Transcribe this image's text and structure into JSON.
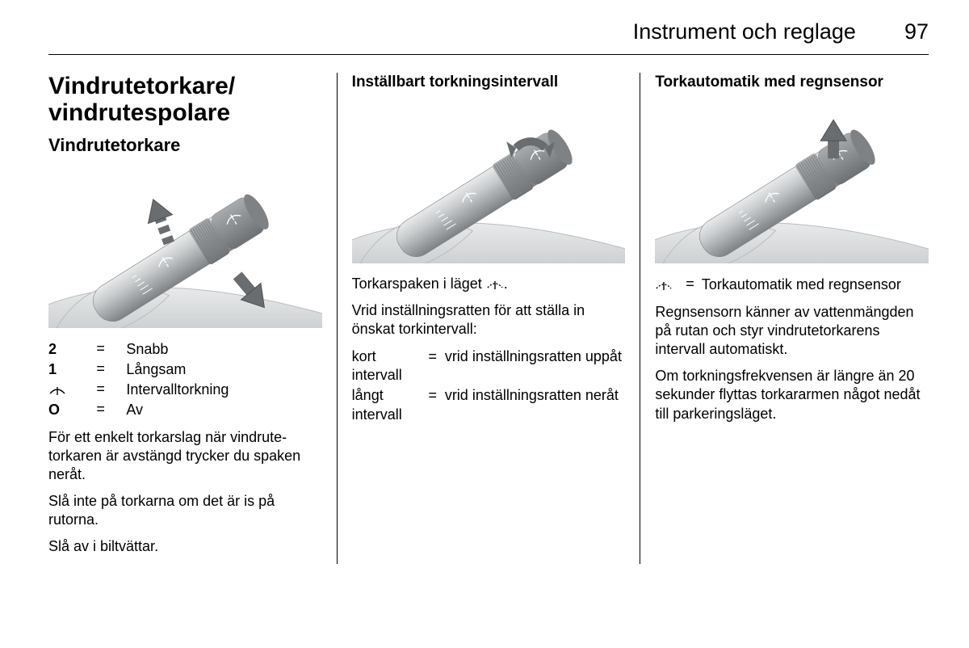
{
  "header": {
    "chapter": "Instrument och reglage",
    "page": "97"
  },
  "col1": {
    "h1": "Vindrutetorkare/\nvindrutespolare",
    "h2": "Vindrutetorkare",
    "legend": [
      {
        "sym": "2",
        "symType": "text",
        "val": "Snabb"
      },
      {
        "sym": "1",
        "symType": "text",
        "val": "Långsam"
      },
      {
        "sym": "wiper-interval",
        "symType": "icon",
        "val": "Intervalltorkning"
      },
      {
        "sym": "O",
        "symType": "text",
        "val": "Av"
      }
    ],
    "p1": "För ett enkelt torkarslag när vindrute­torkaren är avstängd trycker du spaken neråt.",
    "p2": "Slå inte på torkarna om det är is på rutorna.",
    "p3": "Slå av i biltvättar."
  },
  "col2": {
    "h3": "Inställbart torkningsintervall",
    "p1_pre": "Torkarspaken i läget ",
    "p1_post": ".",
    "p2": "Vrid inställningsratten för att ställa in önskat torkintervall:",
    "rows": [
      {
        "left": "kort intervall",
        "right": "vrid inställningsratten uppåt"
      },
      {
        "left": "långt intervall",
        "right": "vrid inställningsratten neråt"
      }
    ]
  },
  "col3": {
    "h3": "Torkautomatik med regnsensor",
    "legend": [
      {
        "sym": "wiper-auto",
        "symType": "icon",
        "val": "Torkautomatik med regn­sensor"
      }
    ],
    "p1": "Regnsensorn känner av vatten­mängden på rutan och styr vindrute­torkarens intervall automatiskt.",
    "p2": "Om torkningsfrekvensen är längre än 20 sekunder flyttas torkararmen något nedåt till parkeringsläget."
  },
  "figure": {
    "stalk_fill_light": "#c9ccce",
    "stalk_fill_dark": "#7e8284",
    "stalk_hilite": "#e8eaeb",
    "tip_band": "#a7abad",
    "knurl": "#6d7173",
    "bg": "#ffffff",
    "dash_curve": "#b9bdbf",
    "arrow_fill": "#6a6d6f",
    "arrow_stroke": "#4e5153",
    "icon_white": "#ffffff"
  }
}
